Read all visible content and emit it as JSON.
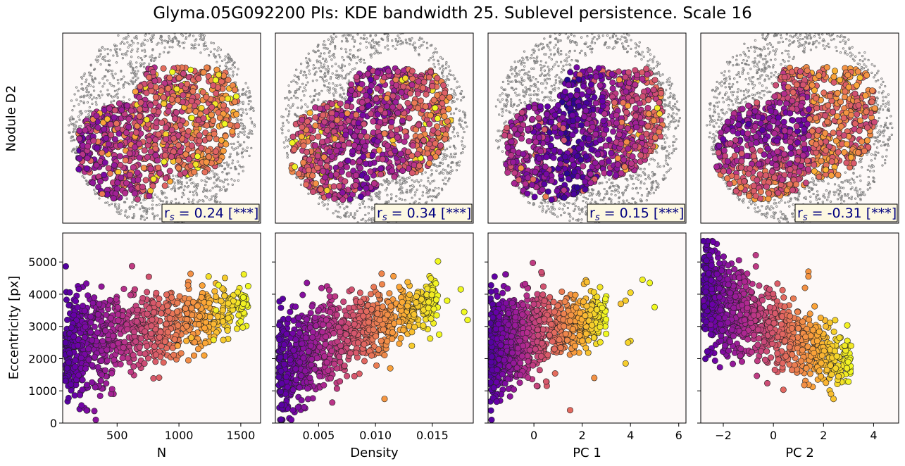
{
  "figure": {
    "title": "Glyma.05G092200 PIs: KDE bandwidth 25. Sublevel persistence. Scale 16",
    "row_labels": [
      "Nodule D2",
      "Eccentricity [px]"
    ]
  },
  "colors": {
    "panel_bg": "#fdf9f8",
    "outline_cells": "#808080",
    "annotation_text": "#00007f",
    "annotation_bg": "#fdf8e1",
    "colormap": [
      "#0d0887",
      "#6a00a8",
      "#b12a90",
      "#e16462",
      "#fca636",
      "#f0f921"
    ]
  },
  "chart_data": [
    {
      "type": "scatter",
      "panel": "spatial-map",
      "name": "Nodule D2 - N",
      "annotation": "0.24 [***]",
      "annotation_prefix": "r",
      "annotation_sub": "s"
    },
    {
      "type": "scatter",
      "panel": "spatial-map",
      "name": "Nodule D2 - Density",
      "annotation": "0.34 [***]",
      "annotation_prefix": "r",
      "annotation_sub": "s"
    },
    {
      "type": "scatter",
      "panel": "spatial-map",
      "name": "Nodule D2 - PC 1",
      "annotation": "0.15 [***]",
      "annotation_prefix": "r",
      "annotation_sub": "s"
    },
    {
      "type": "scatter",
      "panel": "spatial-map",
      "name": "Nodule D2 - PC 2",
      "annotation": "-0.31 [***]",
      "annotation_prefix": "r",
      "annotation_sub": "s"
    },
    {
      "type": "scatter",
      "panel": "correlation",
      "xlabel": "N",
      "ylabel": "Eccentricity [px]",
      "xlim": [
        60,
        1660
      ],
      "ylim": [
        0,
        5900
      ],
      "xticks": [
        500,
        1000,
        1500
      ],
      "xtick_labels": [
        "500",
        "1000",
        "1500"
      ],
      "yticks": [
        0,
        1000,
        2000,
        3000,
        4000,
        5000
      ],
      "ytick_labels": [
        "0",
        "1000",
        "2000",
        "3000",
        "4000",
        "5000"
      ],
      "trend": {
        "x_min": 80,
        "x_max": 1560,
        "y_low": 100,
        "y_high": 5650,
        "center_start": 2300,
        "center_end": 3700
      },
      "highlight_points": [
        {
          "x": 1560,
          "y": 4250
        },
        {
          "x": 1520,
          "y": 3900
        },
        {
          "x": 1500,
          "y": 3150
        },
        {
          "x": 1320,
          "y": 4280
        },
        {
          "x": 1300,
          "y": 3500
        },
        {
          "x": 1240,
          "y": 4550
        },
        {
          "x": 1100,
          "y": 2650
        },
        {
          "x": 1060,
          "y": 2550
        },
        {
          "x": 990,
          "y": 2400
        },
        {
          "x": 1280,
          "y": 2580
        }
      ]
    },
    {
      "type": "scatter",
      "panel": "correlation",
      "xlabel": "Density",
      "ylabel": "",
      "xlim": [
        0.0012,
        0.0186
      ],
      "ylim": [
        0,
        5900
      ],
      "xticks": [
        0.005,
        0.01,
        0.015
      ],
      "xtick_labels": [
        "0.005",
        "0.010",
        "0.015"
      ],
      "yticks": [
        0,
        1000,
        2000,
        3000,
        4000,
        5000
      ],
      "ytick_labels": [],
      "trend": {
        "x_min": 0.0015,
        "x_max": 0.0155,
        "y_low": 100,
        "y_high": 5650,
        "center_start": 1800,
        "center_end": 3900
      },
      "highlight_points": [
        {
          "x": 0.0181,
          "y": 3200
        },
        {
          "x": 0.0178,
          "y": 3450
        },
        {
          "x": 0.0175,
          "y": 4150
        },
        {
          "x": 0.0163,
          "y": 3800
        },
        {
          "x": 0.0155,
          "y": 5020
        },
        {
          "x": 0.0156,
          "y": 2750
        },
        {
          "x": 0.0108,
          "y": 750
        },
        {
          "x": 0.0113,
          "y": 1700
        },
        {
          "x": 0.0132,
          "y": 2400
        }
      ]
    },
    {
      "type": "scatter",
      "panel": "correlation",
      "xlabel": "PC 1",
      "ylabel": "",
      "xlim": [
        -1.9,
        6.3
      ],
      "ylim": [
        0,
        5900
      ],
      "xticks": [
        0,
        2,
        4,
        6
      ],
      "xtick_labels": [
        "0",
        "2",
        "4",
        "6"
      ],
      "yticks": [
        0,
        1000,
        2000,
        3000,
        4000,
        5000
      ],
      "ytick_labels": [],
      "trend": {
        "x_min": -1.8,
        "x_max": 3.0,
        "y_low": 100,
        "y_high": 5650,
        "center_start": 2300,
        "center_end": 3400
      },
      "highlight_points": [
        {
          "x": 5.0,
          "y": 3600
        },
        {
          "x": 4.8,
          "y": 4350
        },
        {
          "x": 4.5,
          "y": 4450
        },
        {
          "x": 4.0,
          "y": 4050
        },
        {
          "x": 3.8,
          "y": 3800
        },
        {
          "x": 3.6,
          "y": 3700
        },
        {
          "x": 4.0,
          "y": 2550
        },
        {
          "x": 3.9,
          "y": 2500
        },
        {
          "x": 3.8,
          "y": 1850
        },
        {
          "x": 1.5,
          "y": 400
        },
        {
          "x": 2.5,
          "y": 1400
        }
      ]
    },
    {
      "type": "scatter",
      "panel": "correlation",
      "xlabel": "PC 2",
      "ylabel": "",
      "xlim": [
        -2.9,
        5.0
      ],
      "ylim": [
        0,
        5900
      ],
      "xticks": [
        -2,
        0,
        2,
        4
      ],
      "xtick_labels": [
        "−2",
        "0",
        "2",
        "4"
      ],
      "yticks": [
        0,
        1000,
        2000,
        3000,
        4000,
        5000
      ],
      "ytick_labels": [],
      "trend": {
        "x_min": -2.8,
        "x_max": 3.1,
        "y_low": 100,
        "y_high": 5650,
        "center_start": 4000,
        "center_end": 1800
      },
      "highlight_points": [
        {
          "x": 3.1,
          "y": 2400
        },
        {
          "x": 2.6,
          "y": 1450
        },
        {
          "x": 2.3,
          "y": 900
        },
        {
          "x": 2.4,
          "y": 750
        },
        {
          "x": 2.1,
          "y": 1250
        },
        {
          "x": 1.4,
          "y": 4700
        },
        {
          "x": 1.4,
          "y": 4550
        },
        {
          "x": -2.8,
          "y": 3800
        },
        {
          "x": -2.5,
          "y": 3050
        }
      ]
    }
  ]
}
